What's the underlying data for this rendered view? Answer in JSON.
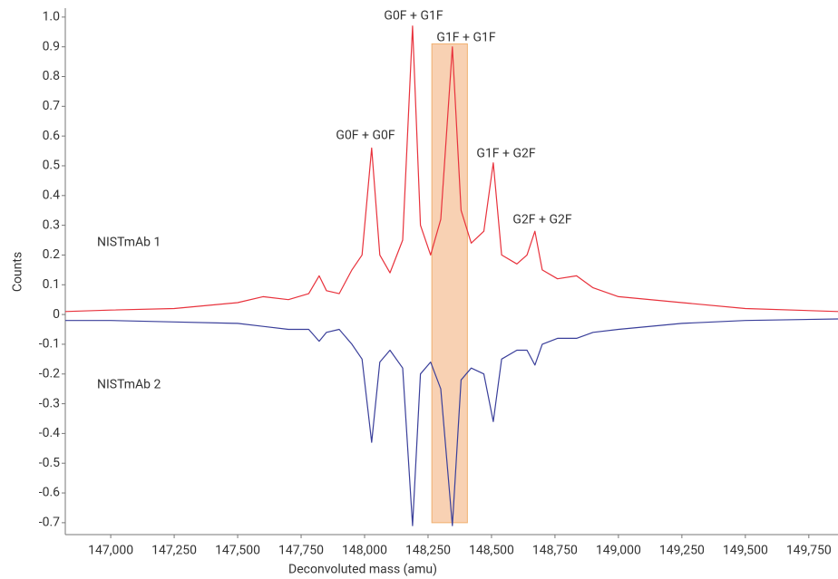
{
  "chart_data": {
    "type": "line",
    "xlabel": "Deconvoluted mass (amu)",
    "ylabel": "Counts",
    "x": [
      146821,
      147000,
      147250,
      147500,
      147600,
      147700,
      147780,
      147821,
      147850,
      147900,
      147950,
      147990,
      148028,
      148060,
      148100,
      148150,
      148189,
      148220,
      148260,
      148300,
      148346,
      148380,
      148420,
      148470,
      148507,
      148540,
      148600,
      148640,
      148671,
      148700,
      148760,
      148835,
      148900,
      149000,
      149250,
      149500,
      149865
    ],
    "series": [
      {
        "name": "NISTmAb 1",
        "color": "#e8323c",
        "values": [
          0.01,
          0.015,
          0.02,
          0.04,
          0.06,
          0.05,
          0.07,
          0.13,
          0.08,
          0.07,
          0.15,
          0.2,
          0.56,
          0.2,
          0.14,
          0.25,
          0.97,
          0.3,
          0.2,
          0.32,
          0.9,
          0.35,
          0.24,
          0.28,
          0.51,
          0.2,
          0.17,
          0.2,
          0.28,
          0.15,
          0.12,
          0.13,
          0.09,
          0.06,
          0.04,
          0.02,
          0.01
        ]
      },
      {
        "name": "NISTmAb 2",
        "color": "#3a3f9a",
        "values": [
          -0.02,
          -0.02,
          -0.025,
          -0.03,
          -0.04,
          -0.05,
          -0.05,
          -0.09,
          -0.06,
          -0.05,
          -0.1,
          -0.15,
          -0.43,
          -0.16,
          -0.12,
          -0.18,
          -0.71,
          -0.2,
          -0.16,
          -0.25,
          -0.71,
          -0.22,
          -0.18,
          -0.2,
          -0.36,
          -0.15,
          -0.12,
          -0.12,
          -0.17,
          -0.1,
          -0.08,
          -0.08,
          -0.06,
          -0.05,
          -0.03,
          -0.02,
          -0.015
        ]
      }
    ],
    "annotations": [
      "G0F + G0F",
      "G0F + G1F",
      "G1F + G1F",
      "G1F + G2F",
      "G2F + G2F"
    ],
    "highlight": {
      "x": [
        148265,
        148405
      ],
      "y": [
        -0.7,
        0.91
      ],
      "color": "#f7c9a6"
    },
    "xlim": [
      146821,
      149865
    ],
    "ylim": [
      -0.74,
      1.03
    ],
    "xticks": [
      {
        "value": 147000,
        "label": "147,000"
      },
      {
        "value": 147250,
        "label": "147,250"
      },
      {
        "value": 147500,
        "label": "147,500"
      },
      {
        "value": 147750,
        "label": "147,750"
      },
      {
        "value": 148000,
        "label": "148,000"
      },
      {
        "value": 148250,
        "label": "148,250"
      },
      {
        "value": 148500,
        "label": "148,500"
      },
      {
        "value": 148750,
        "label": "148,750"
      },
      {
        "value": 149000,
        "label": "149,000"
      },
      {
        "value": 149250,
        "label": "149,250"
      },
      {
        "value": 149500,
        "label": "149,500"
      },
      {
        "value": 149750,
        "label": "149,750"
      }
    ],
    "yticks": [
      {
        "value": 1,
        "label": "1.0"
      },
      0.9,
      0.8,
      0.7,
      0.6,
      0.5,
      0.4,
      0.3,
      0.2,
      0.1,
      0,
      -0.1,
      -0.2,
      -0.3,
      -0.4,
      -0.5,
      -0.6,
      -0.7
    ],
    "grid": false
  }
}
